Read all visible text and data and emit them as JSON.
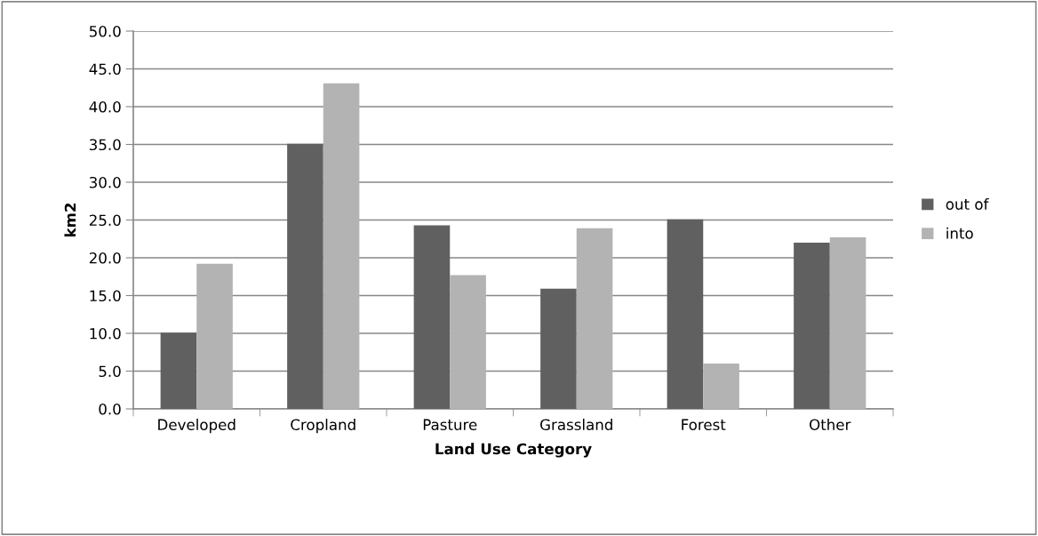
{
  "chart_data": {
    "type": "bar",
    "xlabel": "Land Use Category",
    "ylabel": "km2",
    "categories": [
      "Developed",
      "Cropland",
      "Pasture",
      "Grassland",
      "Forest",
      "Other"
    ],
    "series": [
      {
        "name": "out of",
        "color": "#606060",
        "values": [
          10.1,
          35.1,
          24.3,
          15.9,
          25.1,
          22.0
        ]
      },
      {
        "name": "into",
        "color": "#b3b3b3",
        "values": [
          19.2,
          43.1,
          17.7,
          23.9,
          6.0,
          22.7
        ]
      }
    ],
    "ylim": [
      0,
      50
    ],
    "yticks": [
      {
        "value": 0,
        "label": "0.0"
      },
      {
        "value": 5,
        "label": "5.0"
      },
      {
        "value": 10,
        "label": "10.0"
      },
      {
        "value": 15,
        "label": "15.0"
      },
      {
        "value": 20,
        "label": "20.0"
      },
      {
        "value": 25,
        "label": "25.0"
      },
      {
        "value": 30,
        "label": "30.0"
      },
      {
        "value": 35,
        "label": "35.0"
      },
      {
        "value": 40,
        "label": "40.0"
      },
      {
        "value": 45,
        "label": "45.0"
      },
      {
        "value": 50,
        "label": "50.0"
      }
    ],
    "grid": "y",
    "legend": "right"
  }
}
